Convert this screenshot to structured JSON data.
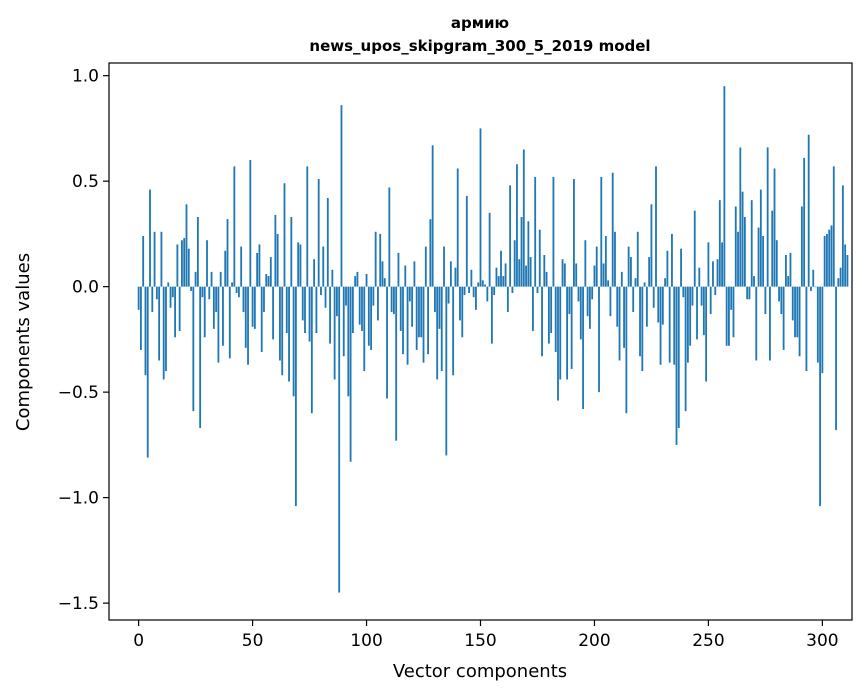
{
  "chart_data": {
    "type": "bar",
    "title": "армию",
    "subtitle": "news_upos_skipgram_300_5_2019 model",
    "xlabel": "Vector components",
    "ylabel": "Components values",
    "xlim": [
      -13,
      313
    ],
    "ylim": [
      -1.58,
      1.06
    ],
    "x_ticks": [
      0,
      50,
      100,
      150,
      200,
      250,
      300
    ],
    "x_tick_labels": [
      "0",
      "50",
      "100",
      "150",
      "200",
      "250",
      "300"
    ],
    "y_ticks": [
      1.0,
      0.5,
      0.0,
      -0.5,
      -1.0,
      -1.5
    ],
    "y_tick_labels": [
      "1.0",
      "0.5",
      "0.0",
      "−0.5",
      "−1.0",
      "−1.5"
    ],
    "bar_color": "#1f77b4",
    "values": [
      -0.11,
      -0.3,
      0.24,
      -0.42,
      -0.81,
      0.46,
      -0.12,
      0.26,
      -0.06,
      -0.35,
      0.26,
      -0.44,
      -0.4,
      0.02,
      -0.1,
      -0.05,
      -0.24,
      0.2,
      -0.21,
      0.22,
      0.23,
      0.39,
      0.18,
      -0.02,
      -0.59,
      0.07,
      0.33,
      -0.67,
      -0.05,
      -0.24,
      0.22,
      -0.06,
      0.07,
      -0.2,
      -0.12,
      -0.36,
      0.07,
      -0.28,
      0.17,
      0.32,
      -0.34,
      0.02,
      0.57,
      -0.03,
      -0.05,
      0.19,
      -0.12,
      -0.29,
      -0.37,
      0.6,
      -0.19,
      -0.2,
      0.16,
      0.2,
      -0.31,
      -0.12,
      0.06,
      0.05,
      0.14,
      -0.25,
      0.34,
      0.25,
      -0.35,
      -0.42,
      0.49,
      -0.22,
      -0.45,
      0.33,
      -0.52,
      -1.04,
      0.21,
      0.2,
      -0.16,
      -0.22,
      0.57,
      -0.26,
      -0.6,
      0.13,
      -0.22,
      0.51,
      -0.04,
      0.19,
      -0.1,
      0.42,
      -0.27,
      0.08,
      -0.44,
      -0.14,
      -1.45,
      0.86,
      -0.33,
      -0.09,
      -0.52,
      -0.83,
      -0.22,
      0.05,
      0.07,
      -0.18,
      -0.21,
      -0.4,
      0.06,
      -0.28,
      -0.3,
      -0.09,
      0.26,
      -0.16,
      0.25,
      0.12,
      0.04,
      -0.53,
      0.47,
      -0.12,
      -0.13,
      -0.73,
      0.16,
      -0.21,
      -0.32,
      0.1,
      -0.37,
      -0.07,
      -0.19,
      0.12,
      -0.3,
      -0.24,
      -0.24,
      -0.36,
      0.19,
      -0.32,
      0.32,
      0.67,
      -0.12,
      -0.44,
      -0.2,
      -0.4,
      0.19,
      -0.8,
      -0.08,
      0.12,
      -0.42,
      0.09,
      0.56,
      -0.16,
      -0.24,
      -0.04,
      0.43,
      -0.03,
      0.08,
      -0.05,
      -0.11,
      0.02,
      0.75,
      0.03,
      0.01,
      -0.07,
      0.35,
      -0.27,
      -0.04,
      0.09,
      0.05,
      0.17,
      0.05,
      0.11,
      -0.12,
      0.48,
      -0.03,
      0.22,
      0.58,
      0.13,
      0.33,
      0.65,
      0.1,
      0.31,
      0.14,
      -0.21,
      0.52,
      -0.03,
      0.27,
      -0.33,
      0.15,
      0.07,
      -0.27,
      -0.22,
      0.52,
      -0.31,
      -0.54,
      -0.44,
      0.13,
      0.11,
      -0.44,
      -0.13,
      -0.39,
      0.51,
      0.11,
      -0.07,
      -0.25,
      -0.58,
      0.22,
      -0.14,
      -0.2,
      -0.06,
      0.1,
      0.19,
      -0.5,
      0.52,
      0.11,
      0.24,
      0.03,
      -0.14,
      0.54,
      0.26,
      -0.19,
      -0.35,
      0.07,
      -0.29,
      -0.6,
      0.19,
      0.14,
      -0.12,
      0.04,
      0.26,
      -0.33,
      -0.4,
      0.02,
      -0.19,
      0.14,
      0.39,
      -0.1,
      0.57,
      -0.17,
      -0.37,
      -0.18,
      0.04,
      0.17,
      -0.36,
      0.25,
      -0.37,
      -0.75,
      -0.67,
      0.18,
      -0.05,
      -0.59,
      -0.36,
      -0.28,
      -0.09,
      0.36,
      -0.25,
      0.09,
      -0.09,
      -0.23,
      -0.45,
      0.21,
      -0.13,
      0.12,
      -0.04,
      0.13,
      0.41,
      0.21,
      0.95,
      -0.28,
      -0.28,
      -0.11,
      -0.24,
      0.38,
      0.26,
      0.66,
      0.45,
      0.33,
      -0.06,
      -0.06,
      0.41,
      0.05,
      -0.35,
      0.28,
      0.46,
      0.24,
      -0.13,
      0.66,
      -0.35,
      0.36,
      0.56,
      0.22,
      -0.07,
      -0.13,
      -0.3,
      0.15,
      0.05,
      0.16,
      -0.16,
      -0.24,
      -0.24,
      -0.33,
      0.38,
      0.61,
      -0.4,
      0.72,
      -0.02,
      0.08,
      0.0,
      -0.36,
      -1.04,
      -0.41,
      0.24,
      0.25,
      0.27,
      0.29,
      0.57,
      -0.68,
      0.04,
      0.09,
      0.48,
      0.2,
      0.15
    ]
  }
}
